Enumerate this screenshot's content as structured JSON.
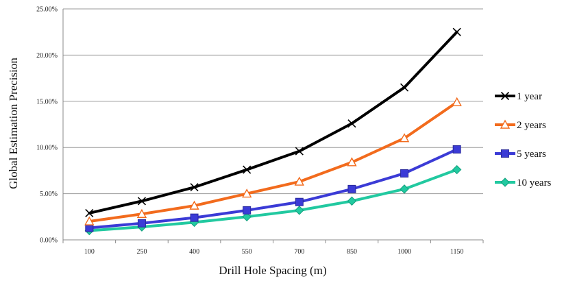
{
  "chart_data": {
    "type": "line",
    "title": "",
    "xlabel": "Drill Hole Spacing (m)",
    "ylabel": "Global Estimation Precision",
    "categories": [
      "100",
      "250",
      "400",
      "550",
      "700",
      "850",
      "1000",
      "1150"
    ],
    "ylim": [
      0,
      25
    ],
    "yticks": [
      "0.00%",
      "5.00%",
      "10.00%",
      "15.00%",
      "20.00%",
      "25.00%"
    ],
    "grid": "horizontal",
    "legend_position": "right",
    "series": [
      {
        "name": "1 year",
        "color": "#000000",
        "marker": "x",
        "values": [
          2.9,
          4.2,
          5.7,
          7.6,
          9.6,
          12.6,
          16.5,
          22.5
        ]
      },
      {
        "name": "2 years",
        "color": "#f26b1d",
        "marker": "triangle",
        "values": [
          2.0,
          2.8,
          3.7,
          5.0,
          6.3,
          8.4,
          11.0,
          14.9
        ]
      },
      {
        "name": "5 years",
        "color": "#3b3bd6",
        "marker": "square",
        "values": [
          1.3,
          1.8,
          2.4,
          3.2,
          4.1,
          5.5,
          7.2,
          9.8
        ]
      },
      {
        "name": "10 years",
        "color": "#22c9a0",
        "marker": "diamond",
        "values": [
          1.0,
          1.4,
          1.9,
          2.5,
          3.2,
          4.2,
          5.5,
          7.6
        ]
      }
    ]
  }
}
